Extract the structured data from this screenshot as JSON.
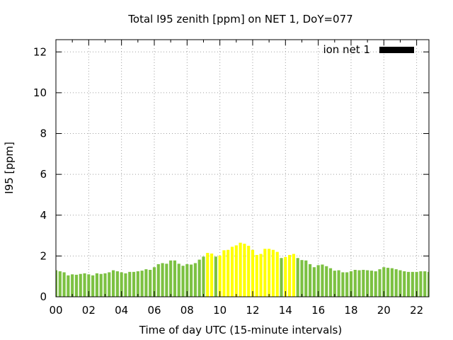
{
  "chart_data": {
    "type": "bar",
    "title": "Total I95 zenith [ppm] on NET 1, DoY=077",
    "xlabel": "Time of day UTC (15-minute intervals)",
    "ylabel": "I95 [ppm]",
    "xlim": [
      0,
      22.75
    ],
    "ylim": [
      0,
      12.6
    ],
    "interval_hours": 0.25,
    "bar_width_hours": 0.18,
    "x_tick_values": [
      0,
      2,
      4,
      6,
      8,
      10,
      12,
      14,
      16,
      18,
      20,
      22
    ],
    "x_tick_labels": [
      "00",
      "02",
      "04",
      "06",
      "08",
      "10",
      "12",
      "14",
      "16",
      "18",
      "20",
      "22"
    ],
    "y_tick_values": [
      0,
      2,
      4,
      6,
      8,
      10,
      12
    ],
    "y_tick_labels": [
      "0",
      "2",
      "4",
      "6",
      "8",
      "10",
      "12"
    ],
    "grid": true,
    "legend": {
      "label": "ion net 1",
      "color": "#000000",
      "placement": "top-right"
    },
    "colors": {
      "normal": "#7cc142",
      "elevated": "#ffff00"
    },
    "series": [
      {
        "name": "ion net 1",
        "values": [
          1.3,
          1.25,
          1.2,
          1.05,
          1.1,
          1.08,
          1.12,
          1.15,
          1.1,
          1.05,
          1.15,
          1.12,
          1.15,
          1.2,
          1.3,
          1.25,
          1.2,
          1.15,
          1.22,
          1.22,
          1.25,
          1.28,
          1.35,
          1.32,
          1.45,
          1.6,
          1.65,
          1.62,
          1.78,
          1.78,
          1.62,
          1.52,
          1.6,
          1.58,
          1.65,
          1.82,
          1.97,
          2.15,
          2.12,
          1.97,
          2.02,
          2.28,
          2.3,
          2.45,
          2.52,
          2.65,
          2.6,
          2.5,
          2.3,
          2.05,
          2.1,
          2.35,
          2.35,
          2.3,
          2.2,
          1.9,
          1.95,
          2.05,
          2.1,
          1.9,
          1.8,
          1.78,
          1.6,
          1.45,
          1.55,
          1.58,
          1.5,
          1.4,
          1.28,
          1.3,
          1.2,
          1.2,
          1.25,
          1.32,
          1.3,
          1.32,
          1.3,
          1.28,
          1.25,
          1.35,
          1.45,
          1.42,
          1.4,
          1.35,
          1.3,
          1.25,
          1.22,
          1.22,
          1.22,
          1.25,
          1.25,
          1.22
        ],
        "level": [
          "normal",
          "normal",
          "normal",
          "normal",
          "normal",
          "normal",
          "normal",
          "normal",
          "normal",
          "normal",
          "normal",
          "normal",
          "normal",
          "normal",
          "normal",
          "normal",
          "normal",
          "normal",
          "normal",
          "normal",
          "normal",
          "normal",
          "normal",
          "normal",
          "normal",
          "normal",
          "normal",
          "normal",
          "normal",
          "normal",
          "normal",
          "normal",
          "normal",
          "normal",
          "normal",
          "normal",
          "normal",
          "elevated",
          "elevated",
          "normal",
          "elevated",
          "elevated",
          "elevated",
          "elevated",
          "elevated",
          "elevated",
          "elevated",
          "elevated",
          "elevated",
          "elevated",
          "elevated",
          "elevated",
          "elevated",
          "elevated",
          "elevated",
          "normal",
          "elevated",
          "elevated",
          "elevated",
          "normal",
          "normal",
          "normal",
          "normal",
          "normal",
          "normal",
          "normal",
          "normal",
          "normal",
          "normal",
          "normal",
          "normal",
          "normal",
          "normal",
          "normal",
          "normal",
          "normal",
          "normal",
          "normal",
          "normal",
          "normal",
          "normal",
          "normal",
          "normal",
          "normal",
          "normal",
          "normal",
          "normal",
          "normal",
          "normal",
          "normal",
          "normal",
          "normal"
        ]
      }
    ]
  }
}
